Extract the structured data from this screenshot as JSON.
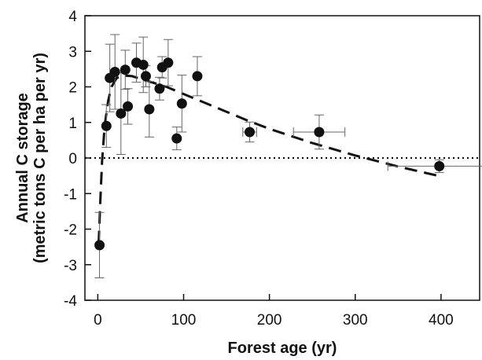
{
  "chart_data": {
    "type": "scatter",
    "title": "",
    "xlabel": "Forest age (yr)",
    "ylabel_line1": "Annual C storage",
    "ylabel_line2": "(metric tons C per ha per yr)",
    "xlim": [
      -15,
      445
    ],
    "ylim": [
      -4,
      4
    ],
    "xticks": [
      0,
      100,
      200,
      300,
      400
    ],
    "yticks": [
      -4,
      -3,
      -2,
      -1,
      0,
      1,
      2,
      3,
      4
    ],
    "grid": false,
    "zero_line": {
      "y": 0,
      "style": "dotted"
    },
    "points": [
      {
        "x": 2,
        "y": -2.45,
        "yerr": 0.92
      },
      {
        "x": 10,
        "y": 0.9,
        "yerr": 0.6
      },
      {
        "x": 14,
        "y": 2.25,
        "yerr": 0.95
      },
      {
        "x": 20,
        "y": 2.42,
        "yerr": 1.05
      },
      {
        "x": 27,
        "y": 1.25,
        "yerr": 1.15
      },
      {
        "x": 32,
        "y": 2.48,
        "yerr": 0.55
      },
      {
        "x": 35,
        "y": 1.45,
        "yerr": 0.5
      },
      {
        "x": 45,
        "y": 2.68,
        "yerr": 0.55
      },
      {
        "x": 53,
        "y": 2.62,
        "yerr": 0.78
      },
      {
        "x": 56,
        "y": 2.3,
        "yerr": 0.3
      },
      {
        "x": 60,
        "y": 1.37,
        "yerr": 0.78
      },
      {
        "x": 72,
        "y": 1.95,
        "yerr": 0.32
      },
      {
        "x": 75,
        "y": 2.55,
        "yerr": 0.3
      },
      {
        "x": 82,
        "y": 2.68,
        "yerr": 0.65
      },
      {
        "x": 92,
        "y": 0.55,
        "yerr": 0.32
      },
      {
        "x": 98,
        "y": 1.53,
        "yerr": 0.8
      },
      {
        "x": 116,
        "y": 2.3,
        "yerr": 0.55
      },
      {
        "x": 177,
        "y": 0.73,
        "yerr": 0.28,
        "xerr": 8
      },
      {
        "x": 258,
        "y": 0.73,
        "yerr": 0.48,
        "xerr": 30
      },
      {
        "x": 398,
        "y": -0.23,
        "yerr": 0.18,
        "xerr": 60
      }
    ],
    "fit_curve": [
      [
        1,
        -2.4
      ],
      [
        3,
        -1.2
      ],
      [
        5,
        -0.1
      ],
      [
        8,
        0.9
      ],
      [
        12,
        1.6
      ],
      [
        16,
        2.0
      ],
      [
        22,
        2.25
      ],
      [
        30,
        2.32
      ],
      [
        40,
        2.3
      ],
      [
        60,
        2.15
      ],
      [
        80,
        2.0
      ],
      [
        100,
        1.8
      ],
      [
        125,
        1.55
      ],
      [
        150,
        1.3
      ],
      [
        175,
        1.05
      ],
      [
        200,
        0.82
      ],
      [
        250,
        0.42
      ],
      [
        300,
        0.07
      ],
      [
        350,
        -0.24
      ],
      [
        400,
        -0.52
      ]
    ]
  }
}
